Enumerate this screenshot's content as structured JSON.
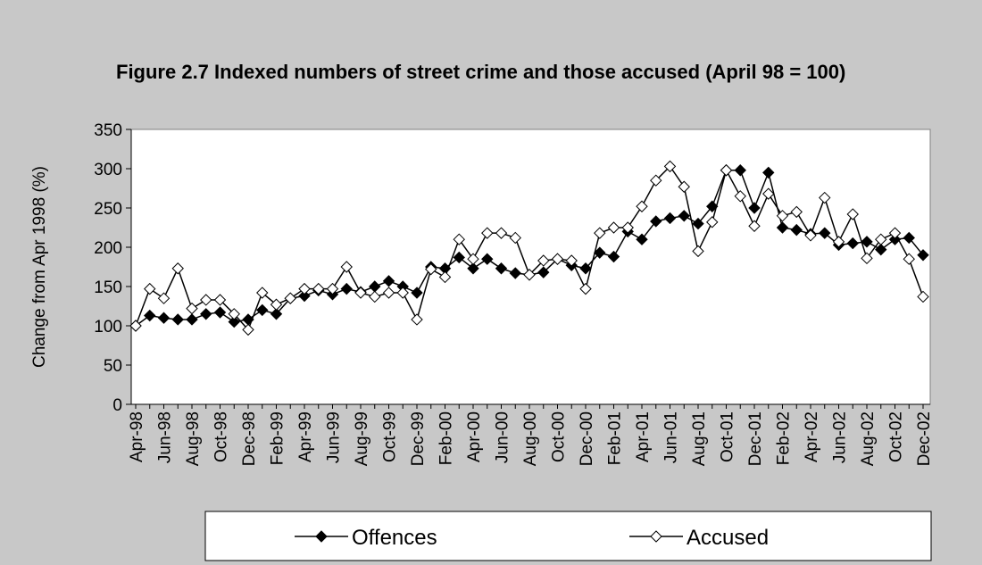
{
  "chart_data": {
    "type": "line",
    "title": "Figure 2.7 Indexed numbers of street crime and those accused (April 98 = 100)",
    "y_label": "Change from Apr 1998 (%)",
    "categories": [
      "Apr-98",
      null,
      "Jun-98",
      null,
      "Aug-98",
      null,
      "Oct-98",
      null,
      "Dec-98",
      null,
      "Feb-99",
      null,
      "Apr-99",
      null,
      "Jun-99",
      null,
      "Aug-99",
      null,
      "Oct-99",
      null,
      "Dec-99",
      null,
      "Feb-00",
      null,
      "Apr-00",
      null,
      "Jun-00",
      null,
      "Aug-00",
      null,
      "Oct-00",
      null,
      "Dec-00",
      null,
      "Feb-01",
      null,
      "Apr-01",
      null,
      "Jun-01",
      null,
      "Aug-01",
      null,
      "Oct-01",
      null,
      "Dec-01",
      null,
      "Feb-02",
      null,
      "Apr-02",
      null,
      "Jun-02",
      null,
      "Aug-02",
      null,
      "Oct-02",
      null,
      "Dec-02"
    ],
    "series": [
      {
        "name": "Offences",
        "color": "#000000",
        "marker_fill": "#000000",
        "values": [
          100,
          113,
          110,
          108,
          108,
          115,
          117,
          105,
          108,
          120,
          115,
          135,
          138,
          145,
          140,
          147,
          143,
          150,
          157,
          150,
          142,
          175,
          173,
          187,
          173,
          185,
          173,
          167,
          165,
          168,
          185,
          177,
          173,
          193,
          188,
          220,
          210,
          233,
          237,
          240,
          230,
          252,
          298,
          298,
          250,
          295,
          225,
          222,
          217,
          218,
          203,
          205,
          207,
          197,
          210,
          212,
          190
        ]
      },
      {
        "name": "Accused",
        "color": "#000000",
        "marker_fill": "#ffffff",
        "values": [
          100,
          147,
          135,
          173,
          122,
          133,
          133,
          115,
          95,
          142,
          127,
          135,
          147,
          147,
          147,
          175,
          142,
          137,
          142,
          142,
          108,
          172,
          162,
          210,
          185,
          218,
          218,
          212,
          165,
          183,
          185,
          183,
          147,
          218,
          225,
          225,
          252,
          285,
          303,
          277,
          195,
          232,
          298,
          265,
          227,
          268,
          240,
          245,
          215,
          263,
          207,
          242,
          186,
          210,
          218,
          185,
          137
        ]
      }
    ],
    "ylim": [
      0,
      350
    ],
    "yticks": [
      0,
      50,
      100,
      150,
      200,
      250,
      300,
      350
    ],
    "legend": "bottom"
  }
}
